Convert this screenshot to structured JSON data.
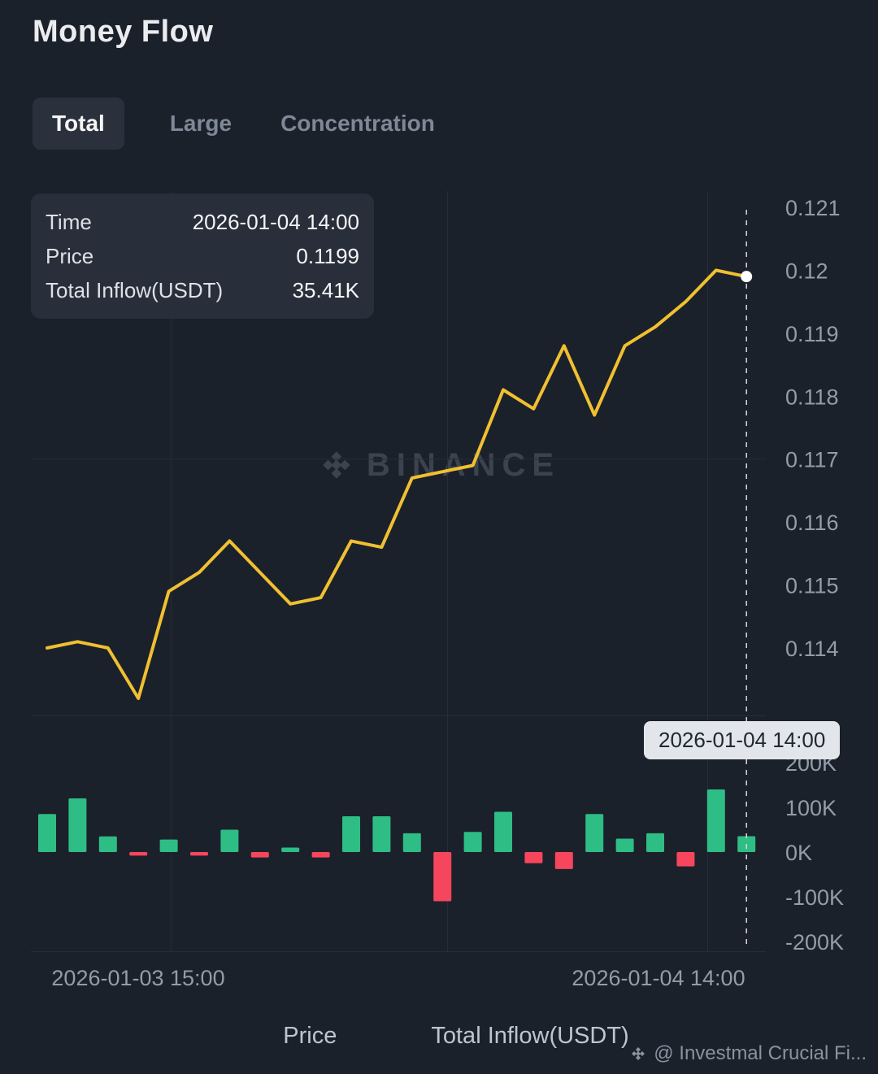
{
  "page": {
    "title": "Money Flow"
  },
  "tabs": [
    {
      "label": "Total",
      "active": true
    },
    {
      "label": "Large",
      "active": false
    },
    {
      "label": "Concentration",
      "active": false
    }
  ],
  "tooltip": {
    "rows": [
      {
        "label": "Time",
        "value": "2026-01-04 14:00"
      },
      {
        "label": "Price",
        "value": "0.1199"
      },
      {
        "label": "Total Inflow(USDT)",
        "value": "35.41K"
      }
    ]
  },
  "watermark": {
    "text": "BINANCE"
  },
  "footer": {
    "text": "@ Investmal Crucial Fi..."
  },
  "colors": {
    "background": "#1b212b",
    "price_yellow": "#f0c030",
    "inflow_green": "#2ebd85",
    "outflow_red": "#f6465d",
    "axis_text": "#949ca8"
  },
  "chart_data": {
    "type": "line+bar",
    "title": "Money Flow",
    "price_series": {
      "name": "Price",
      "color": "#f0c030",
      "values": [
        0.114,
        0.1141,
        0.114,
        0.1132,
        0.1149,
        0.1152,
        0.1157,
        0.1152,
        0.1147,
        0.1148,
        0.1157,
        0.1156,
        0.1167,
        0.1168,
        0.1169,
        0.1181,
        0.1178,
        0.1188,
        0.1177,
        0.1188,
        0.1191,
        0.1195,
        0.12,
        0.1199
      ]
    },
    "inflow_series": {
      "name": "Total Inflow(USDT)",
      "pos_color": "#2ebd85",
      "neg_color": "#f6465d",
      "values_k": [
        85,
        120,
        35,
        -8,
        28,
        -8,
        50,
        -12,
        10,
        -12,
        80,
        80,
        42,
        -110,
        45,
        90,
        -25,
        -38,
        85,
        30,
        42,
        -32,
        140,
        35.41
      ]
    },
    "price_axis": {
      "ticks": [
        0.121,
        0.12,
        0.119,
        0.118,
        0.117,
        0.116,
        0.115,
        0.114
      ],
      "labels": [
        "0.121",
        "0.12",
        "0.119",
        "0.118",
        "0.117",
        "0.116",
        "0.115",
        "0.114"
      ],
      "range": [
        0.1128,
        0.1212
      ]
    },
    "volume_axis": {
      "ticks": [
        200,
        100,
        0,
        -100,
        -200
      ],
      "labels": [
        "200K",
        "100K",
        "0K",
        "-100K",
        "-200K"
      ],
      "range_k": [
        -220,
        220
      ]
    },
    "x_axis": {
      "labels": [
        "2026-01-03 15:00",
        "2026-01-04 14:00"
      ]
    },
    "crosshair": {
      "index": 23,
      "time": "2026-01-04 14:00",
      "price": 0.1199,
      "inflow_k": 35.41
    },
    "legend_position": "bottom",
    "grid": true
  }
}
